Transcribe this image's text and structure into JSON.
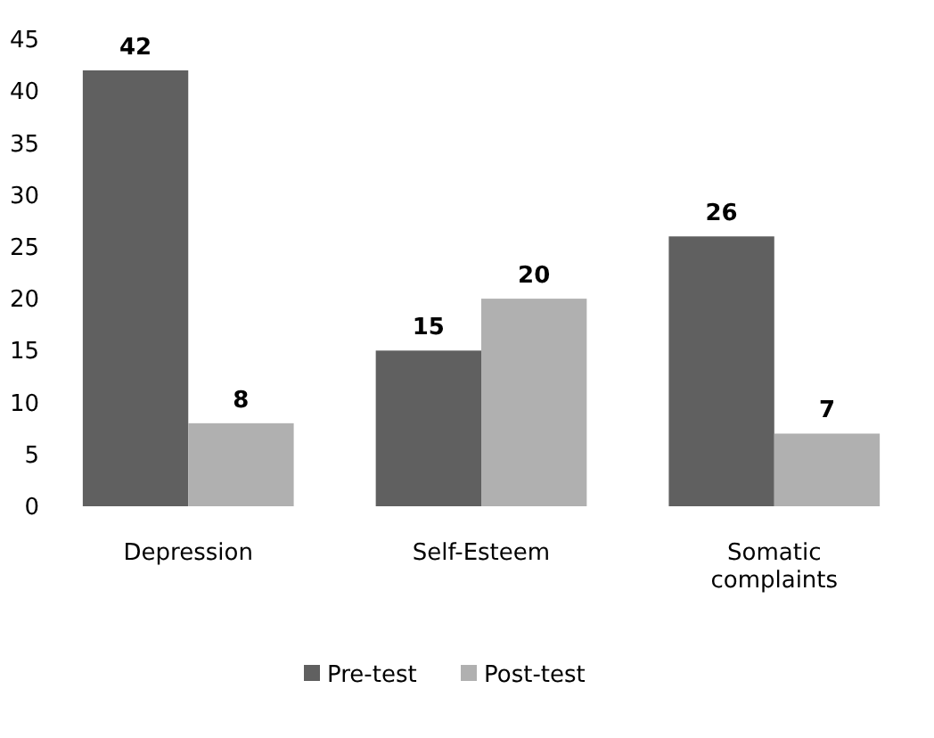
{
  "chart_data": {
    "type": "bar",
    "categories": [
      "Depression",
      "Self-Esteem",
      "Somatic complaints"
    ],
    "series": [
      {
        "name": "Pre-test",
        "color": "#606060",
        "values": [
          42,
          15,
          26
        ]
      },
      {
        "name": "Post-test",
        "color": "#b0b0b0",
        "values": [
          8,
          20,
          7
        ]
      }
    ],
    "ylim": [
      0,
      45
    ],
    "yticks": [
      0,
      5,
      10,
      15,
      20,
      25,
      30,
      35,
      40,
      45
    ],
    "grid": false,
    "legend": "bottom",
    "data_labels": true
  }
}
